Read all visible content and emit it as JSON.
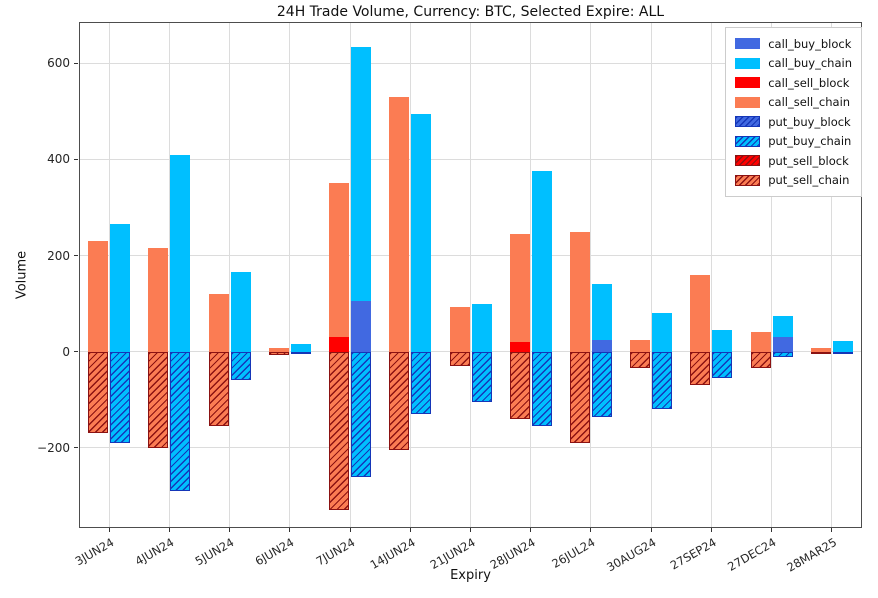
{
  "figure": {
    "title": "24H Trade Volume, Currency: BTC, Selected Expire: ALL",
    "xlabel": "Expiry",
    "ylabel": "Volume"
  },
  "colors": {
    "background": "#ffffff",
    "grid": "#dcdcdc",
    "spine": "#4d4d4d",
    "tick_text": "#262626",
    "royalblue": "#4169E1",
    "deepskyblue": "#00BFFF",
    "red": "#FF0000",
    "coral": "#FB7C53",
    "buy_hatch": "#1536B8",
    "sell_hatch": "#8B1212"
  },
  "chart_data": {
    "type": "bar",
    "stacked": true,
    "grid": true,
    "legend_position": "upper right",
    "title": "24H Trade Volume, Currency: BTC, Selected Expire: ALL",
    "xlabel": "Expiry",
    "ylabel": "Volume",
    "categories": [
      "3JUN24",
      "4JUN24",
      "5JUN24",
      "6JUN24",
      "7JUN24",
      "14JUN24",
      "21JUN24",
      "28JUN24",
      "26JUL24",
      "30AUG24",
      "27SEP24",
      "27DEC24",
      "28MAR25"
    ],
    "ylim": [
      -367,
      686
    ],
    "yticks": [
      {
        "value": -200,
        "label": "−200"
      },
      {
        "value": 0,
        "label": "0"
      },
      {
        "value": 200,
        "label": "200"
      },
      {
        "value": 400,
        "label": "400"
      },
      {
        "value": 600,
        "label": "600"
      }
    ],
    "series": [
      {
        "name": "call_buy_block",
        "column": "buy",
        "color": "#4169E1",
        "hatch": false,
        "hatch_color": null,
        "values": [
          0,
          0,
          0,
          0,
          105,
          0,
          0,
          0,
          25,
          0,
          0,
          30,
          0
        ]
      },
      {
        "name": "call_buy_chain",
        "column": "buy",
        "color": "#00BFFF",
        "hatch": false,
        "hatch_color": null,
        "values": [
          265,
          410,
          165,
          15,
          530,
          495,
          100,
          375,
          115,
          80,
          45,
          45,
          22
        ]
      },
      {
        "name": "call_sell_block",
        "column": "sell",
        "color": "#FF0000",
        "hatch": false,
        "hatch_color": null,
        "values": [
          0,
          0,
          0,
          0,
          30,
          0,
          0,
          20,
          0,
          0,
          0,
          0,
          0
        ]
      },
      {
        "name": "call_sell_chain",
        "column": "sell",
        "color": "#FB7C53",
        "hatch": false,
        "hatch_color": null,
        "values": [
          230,
          215,
          120,
          8,
          320,
          530,
          92,
          225,
          250,
          25,
          160,
          40,
          8
        ]
      },
      {
        "name": "put_buy_block",
        "column": "buy",
        "color": "#4169E1",
        "hatch": true,
        "hatch_color": "#1536B8",
        "values": [
          0,
          0,
          0,
          0,
          0,
          0,
          0,
          0,
          0,
          0,
          0,
          0,
          0
        ]
      },
      {
        "name": "put_buy_chain",
        "column": "buy",
        "color": "#00BFFF",
        "hatch": true,
        "hatch_color": "#1536B8",
        "values": [
          -190,
          -290,
          -60,
          -5,
          -260,
          -130,
          -105,
          -155,
          -135,
          -120,
          -55,
          -12,
          -5
        ]
      },
      {
        "name": "put_sell_block",
        "column": "sell",
        "color": "#FF0000",
        "hatch": true,
        "hatch_color": "#8B1212",
        "values": [
          0,
          0,
          0,
          0,
          0,
          0,
          0,
          0,
          0,
          0,
          0,
          0,
          0
        ]
      },
      {
        "name": "put_sell_chain",
        "column": "sell",
        "color": "#FB7C53",
        "hatch": true,
        "hatch_color": "#8B1212",
        "values": [
          -170,
          -200,
          -155,
          -8,
          -330,
          -205,
          -30,
          -140,
          -190,
          -35,
          -70,
          -35,
          -5
        ]
      }
    ]
  }
}
